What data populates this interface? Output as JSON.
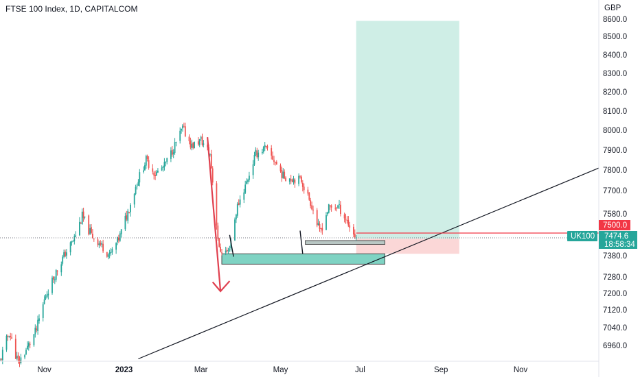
{
  "header": {
    "title": "FTSE 100 Index, 1D, CAPITALCOM"
  },
  "axis": {
    "currency": "GBP"
  },
  "markers": {
    "alert_price": "7500.0",
    "symbol": "UK100",
    "last_price": "7474.6",
    "countdown": "18:58:34"
  },
  "colors": {
    "up": "#26a69a",
    "down": "#ef5350",
    "target_zone": "#cfeee6",
    "stop_zone": "#fbd7d7",
    "demand_zone": "#7fd3c3",
    "alert_line": "#f23645",
    "marker_bg": "#26a69a"
  },
  "chart_data": {
    "type": "candlestick",
    "title": "FTSE 100 Index, 1D, CAPITALCOM",
    "ylabel": "GBP",
    "ylim": [
      6900,
      8650
    ],
    "y_ticks": [
      "8600.0",
      "8500.0",
      "8400.0",
      "8300.0",
      "8200.0",
      "8100.0",
      "8000.0",
      "7900.0",
      "7800.0",
      "7700.0",
      "7580.0",
      "7500.0",
      "7380.0",
      "7280.0",
      "7200.0",
      "7120.0",
      "7040.0",
      "6960.0"
    ],
    "x_ticks": [
      "Nov",
      "2023",
      "Mar",
      "May",
      "Jul",
      "Sep",
      "Nov"
    ],
    "x_range": [
      "2022-09-28",
      "2023-12-31"
    ],
    "series_close": [
      [
        "2022-09-28",
        6890
      ],
      [
        "2022-10-05",
        7020
      ],
      [
        "2022-10-12",
        6880
      ],
      [
        "2022-10-19",
        6950
      ],
      [
        "2022-10-26",
        7030
      ],
      [
        "2022-11-02",
        7190
      ],
      [
        "2022-11-09",
        7290
      ],
      [
        "2022-11-16",
        7380
      ],
      [
        "2022-11-23",
        7460
      ],
      [
        "2022-11-30",
        7570
      ],
      [
        "2022-12-07",
        7490
      ],
      [
        "2022-12-14",
        7440
      ],
      [
        "2022-12-21",
        7380
      ],
      [
        "2022-12-28",
        7470
      ],
      [
        "2023-01-04",
        7590
      ],
      [
        "2023-01-11",
        7740
      ],
      [
        "2023-01-18",
        7850
      ],
      [
        "2023-01-25",
        7780
      ],
      [
        "2023-02-01",
        7820
      ],
      [
        "2023-02-08",
        7910
      ],
      [
        "2023-02-15",
        8010
      ],
      [
        "2023-02-22",
        7920
      ],
      [
        "2023-03-01",
        7950
      ],
      [
        "2023-03-08",
        7880
      ],
      [
        "2023-03-15",
        7410
      ],
      [
        "2023-03-22",
        7400
      ],
      [
        "2023-03-29",
        7620
      ],
      [
        "2023-04-05",
        7740
      ],
      [
        "2023-04-12",
        7880
      ],
      [
        "2023-04-19",
        7910
      ],
      [
        "2023-04-26",
        7850
      ],
      [
        "2023-05-03",
        7770
      ],
      [
        "2023-05-10",
        7760
      ],
      [
        "2023-05-17",
        7750
      ],
      [
        "2023-05-24",
        7640
      ],
      [
        "2023-05-31",
        7500
      ],
      [
        "2023-06-07",
        7610
      ],
      [
        "2023-06-14",
        7620
      ],
      [
        "2023-06-21",
        7550
      ],
      [
        "2023-06-28",
        7475
      ]
    ],
    "annotations": {
      "alert_level": 7500.0,
      "last_price": 7474.6,
      "target_zone": {
        "from": "2023-06-28",
        "to": "2023-09-15",
        "low": 7470,
        "high": 8590
      },
      "stop_zone": {
        "from": "2023-06-28",
        "to": "2023-09-15",
        "low": 7390,
        "high": 7470
      },
      "demand_zone": {
        "from": "2023-03-17",
        "to": "2023-07-20",
        "low": 7340,
        "high": 7390
      },
      "small_zone": {
        "from": "2023-05-20",
        "to": "2023-07-20",
        "low": 7440,
        "high": 7460
      },
      "trendline": {
        "from": [
          "2023-01-12",
          6900
        ],
        "to": [
          "2023-12-31",
          7810
        ]
      }
    }
  }
}
